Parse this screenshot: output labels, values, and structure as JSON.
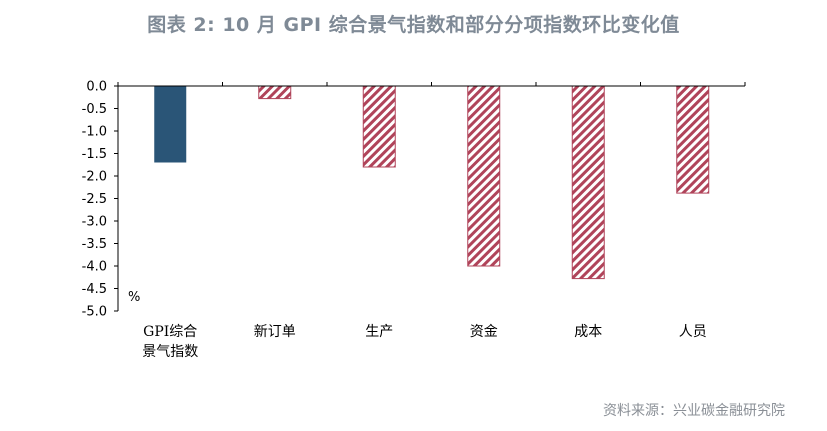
{
  "title": "图表 2:   10 月 GPI 综合景气指数和部分分项指数环比变化值",
  "source": "资料来源：兴业碳金融研究院",
  "chart_data": {
    "type": "bar",
    "categories": [
      "GPI综合景气指数",
      "新订单",
      "生产",
      "资金",
      "成本",
      "人员"
    ],
    "category_lines": [
      [
        "GPI综合",
        "景气指数"
      ],
      [
        "新订单"
      ],
      [
        "生产"
      ],
      [
        "资金"
      ],
      [
        "成本"
      ],
      [
        "人员"
      ]
    ],
    "values": [
      -1.7,
      -0.28,
      -1.8,
      -4.0,
      -4.28,
      -2.38
    ],
    "ylim": [
      -5.0,
      0.0
    ],
    "yticks": [
      0.0,
      -0.5,
      -1.0,
      -1.5,
      -2.0,
      -2.5,
      -3.0,
      -3.5,
      -4.0,
      -4.5,
      -5.0
    ],
    "ytick_labels": [
      "0.0",
      "-0.5",
      "-1.0",
      "-1.5",
      "-2.0",
      "-2.5",
      "-3.0",
      "-3.5",
      "-4.0",
      "-4.5",
      "-5.0"
    ],
    "unit": "%",
    "grid": false,
    "colors": {
      "composite": "#2a5577",
      "hatch": "#b0445a",
      "axis": "#000000"
    },
    "styles": [
      "solid",
      "hatched",
      "hatched",
      "hatched",
      "hatched",
      "hatched"
    ]
  }
}
